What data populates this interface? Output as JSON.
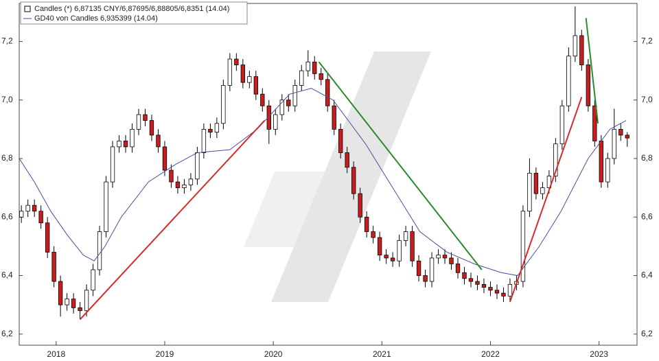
{
  "chart_data": {
    "type": "candlestick",
    "legend": [
      "Candles (*) 6,87135 CNY/6,87695/6,88805/6,8351 (14.04)",
      "GD40 von Candles 6,935399 (14.04)"
    ],
    "x": [
      2017.68,
      2017.74,
      2017.8,
      2017.86,
      2017.92,
      2017.98,
      2018.04,
      2018.1,
      2018.16,
      2018.22,
      2018.28,
      2018.34,
      2018.4,
      2018.46,
      2018.52,
      2018.58,
      2018.64,
      2018.7,
      2018.76,
      2018.82,
      2018.88,
      2018.94,
      2019.0,
      2019.06,
      2019.12,
      2019.18,
      2019.24,
      2019.3,
      2019.36,
      2019.42,
      2019.48,
      2019.54,
      2019.6,
      2019.66,
      2019.72,
      2019.78,
      2019.84,
      2019.9,
      2019.96,
      2020.02,
      2020.08,
      2020.14,
      2020.2,
      2020.26,
      2020.32,
      2020.38,
      2020.44,
      2020.5,
      2020.56,
      2020.62,
      2020.68,
      2020.74,
      2020.8,
      2020.86,
      2020.92,
      2020.98,
      2021.04,
      2021.1,
      2021.16,
      2021.22,
      2021.28,
      2021.34,
      2021.4,
      2021.46,
      2021.52,
      2021.58,
      2021.64,
      2021.7,
      2021.76,
      2021.82,
      2021.88,
      2021.94,
      2022.0,
      2022.06,
      2022.12,
      2022.18,
      2022.24,
      2022.3,
      2022.36,
      2022.42,
      2022.48,
      2022.54,
      2022.6,
      2022.66,
      2022.72,
      2022.78,
      2022.84,
      2022.9,
      2022.96,
      2023.02,
      2023.08,
      2023.14,
      2023.2,
      2023.26
    ],
    "open": [
      6.6,
      6.62,
      6.64,
      6.62,
      6.58,
      6.48,
      6.38,
      6.3,
      6.32,
      6.29,
      6.28,
      6.35,
      6.42,
      6.55,
      6.72,
      6.84,
      6.86,
      6.84,
      6.9,
      6.95,
      6.93,
      6.88,
      6.84,
      6.76,
      6.72,
      6.7,
      6.71,
      6.73,
      6.82,
      6.9,
      6.89,
      6.92,
      7.05,
      7.14,
      7.12,
      7.06,
      7.08,
      7.02,
      6.98,
      6.9,
      6.95,
      7.0,
      6.98,
      7.05,
      7.1,
      7.13,
      7.09,
      7.07,
      6.98,
      6.9,
      6.82,
      6.77,
      6.68,
      6.6,
      6.55,
      6.53,
      6.47,
      6.46,
      6.45,
      6.52,
      6.55,
      6.45,
      6.4,
      6.38,
      6.46,
      6.47,
      6.46,
      6.44,
      6.41,
      6.39,
      6.38,
      6.37,
      6.36,
      6.35,
      6.34,
      6.33,
      6.37,
      6.38,
      6.62,
      6.75,
      6.68,
      6.7,
      6.74,
      6.85,
      6.98,
      7.15,
      7.22,
      7.12,
      6.98,
      6.86,
      6.72,
      6.8,
      6.9,
      6.88
    ],
    "high": [
      6.64,
      6.66,
      6.66,
      6.64,
      6.6,
      6.5,
      6.4,
      6.34,
      6.34,
      6.31,
      6.37,
      6.44,
      6.57,
      6.74,
      6.86,
      6.88,
      6.88,
      6.92,
      6.97,
      6.97,
      6.95,
      6.9,
      6.86,
      6.78,
      6.74,
      6.73,
      6.75,
      6.84,
      6.92,
      6.92,
      6.94,
      7.07,
      7.16,
      7.16,
      7.14,
      7.1,
      7.1,
      7.04,
      7.0,
      6.97,
      7.02,
      7.02,
      7.07,
      7.12,
      7.17,
      7.15,
      7.11,
      7.09,
      7.0,
      6.92,
      6.84,
      6.79,
      6.7,
      6.62,
      6.57,
      6.55,
      6.49,
      6.48,
      6.54,
      6.57,
      6.57,
      6.47,
      6.42,
      6.48,
      6.49,
      6.49,
      6.48,
      6.46,
      6.43,
      6.41,
      6.4,
      6.39,
      6.38,
      6.37,
      6.36,
      6.39,
      6.4,
      6.64,
      6.8,
      6.77,
      6.72,
      6.76,
      6.87,
      7.0,
      7.18,
      7.32,
      7.24,
      7.14,
      7.0,
      6.88,
      6.82,
      6.97,
      6.92,
      6.89
    ],
    "low": [
      6.58,
      6.6,
      6.6,
      6.56,
      6.46,
      6.36,
      6.26,
      6.28,
      6.27,
      6.25,
      6.26,
      6.33,
      6.4,
      6.53,
      6.7,
      6.82,
      6.82,
      6.82,
      6.88,
      6.91,
      6.86,
      6.82,
      6.74,
      6.7,
      6.68,
      6.68,
      6.69,
      6.71,
      6.8,
      6.87,
      6.87,
      6.9,
      7.03,
      7.1,
      7.04,
      7.04,
      7.0,
      6.96,
      6.85,
      6.88,
      6.93,
      6.96,
      6.96,
      7.03,
      7.08,
      7.07,
      7.05,
      6.96,
      6.88,
      6.8,
      6.75,
      6.66,
      6.58,
      6.53,
      6.51,
      6.45,
      6.44,
      6.43,
      6.43,
      6.5,
      6.43,
      6.38,
      6.36,
      6.36,
      6.44,
      6.44,
      6.42,
      6.39,
      6.37,
      6.36,
      6.35,
      6.34,
      6.33,
      6.32,
      6.31,
      6.31,
      6.35,
      6.36,
      6.6,
      6.66,
      6.66,
      6.68,
      6.72,
      6.83,
      6.96,
      7.13,
      7.1,
      6.96,
      6.84,
      6.7,
      6.7,
      6.78,
      6.86,
      6.84
    ],
    "close": [
      6.62,
      6.64,
      6.62,
      6.58,
      6.48,
      6.38,
      6.3,
      6.32,
      6.29,
      6.28,
      6.35,
      6.42,
      6.55,
      6.72,
      6.84,
      6.86,
      6.84,
      6.9,
      6.95,
      6.93,
      6.88,
      6.84,
      6.76,
      6.72,
      6.7,
      6.71,
      6.73,
      6.82,
      6.9,
      6.89,
      6.92,
      7.05,
      7.14,
      7.12,
      7.06,
      7.08,
      7.02,
      6.98,
      6.9,
      6.95,
      7.0,
      6.98,
      7.05,
      7.1,
      7.13,
      7.09,
      7.07,
      6.98,
      6.9,
      6.82,
      6.77,
      6.68,
      6.6,
      6.55,
      6.53,
      6.47,
      6.46,
      6.45,
      6.52,
      6.55,
      6.45,
      6.4,
      6.38,
      6.46,
      6.47,
      6.46,
      6.44,
      6.41,
      6.39,
      6.38,
      6.37,
      6.36,
      6.35,
      6.34,
      6.33,
      6.37,
      6.38,
      6.62,
      6.75,
      6.68,
      6.7,
      6.74,
      6.85,
      6.98,
      7.15,
      7.22,
      7.12,
      6.98,
      6.86,
      6.72,
      6.8,
      6.9,
      6.88,
      6.87
    ],
    "up_color": "#ffffff",
    "down_color": "#c81e1e",
    "average": {
      "color": "#4b4b9e",
      "x": [
        2017.66,
        2017.8,
        2017.95,
        2018.1,
        2018.25,
        2018.35,
        2018.45,
        2018.6,
        2018.85,
        2019.1,
        2019.3,
        2019.6,
        2019.85,
        2020.15,
        2020.35,
        2020.55,
        2020.85,
        2021.1,
        2021.35,
        2021.6,
        2021.85,
        2022.1,
        2022.25,
        2022.45,
        2022.65,
        2022.9,
        2023.1,
        2023.25
      ],
      "values": [
        6.8,
        6.72,
        6.62,
        6.54,
        6.47,
        6.45,
        6.5,
        6.6,
        6.72,
        6.78,
        6.82,
        6.83,
        6.9,
        7.02,
        7.04,
        7.0,
        6.85,
        6.7,
        6.55,
        6.48,
        6.44,
        6.41,
        6.4,
        6.5,
        6.62,
        6.8,
        6.9,
        6.93
      ]
    },
    "trendlines": [
      {
        "color": "#d42a2a",
        "x": [
          2018.22,
          2019.92
        ],
        "y": [
          6.25,
          6.93
        ]
      },
      {
        "color": "#2a8a2a",
        "x": [
          2020.42,
          2021.92
        ],
        "y": [
          7.13,
          6.42
        ]
      },
      {
        "color": "#d42a2a",
        "x": [
          2022.18,
          2022.84
        ],
        "y": [
          6.31,
          7.01
        ]
      },
      {
        "color": "#2a8a2a",
        "x": [
          2022.88,
          2022.99
        ],
        "y": [
          7.28,
          6.92
        ]
      }
    ],
    "xlim": [
      2017.66,
      2023.35
    ],
    "xticks": [
      2018,
      2019,
      2020,
      2021,
      2022,
      2023
    ],
    "ylim": [
      6.162,
      7.33
    ],
    "yticks": [
      {
        "value": 6.2,
        "label": "6,2"
      },
      {
        "value": 6.4,
        "label": "6,4"
      },
      {
        "value": 6.6,
        "label": "6,6"
      },
      {
        "value": 6.8,
        "label": "6,8"
      },
      {
        "value": 7.0,
        "label": "7,0"
      },
      {
        "value": 7.2,
        "label": "7,2"
      }
    ]
  }
}
